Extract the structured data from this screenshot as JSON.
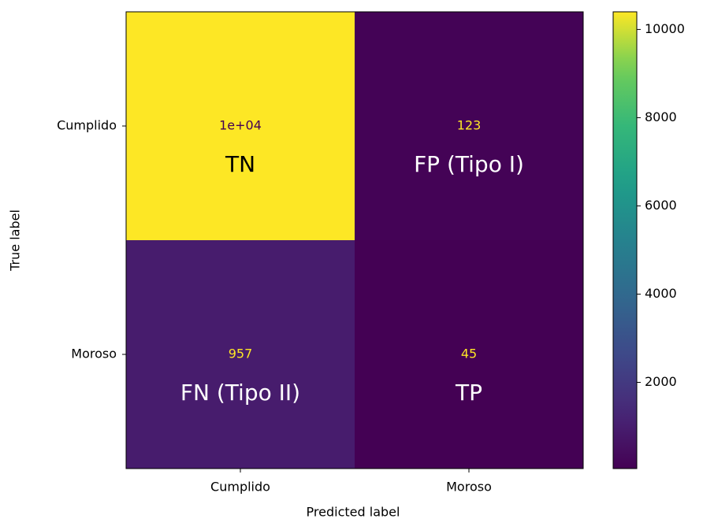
{
  "chart_data": {
    "type": "heatmap",
    "x_categories": [
      "Cumplido",
      "Moroso"
    ],
    "y_categories": [
      "Cumplido",
      "Moroso"
    ],
    "values": [
      [
        10400,
        123
      ],
      [
        957,
        45
      ]
    ],
    "value_labels": [
      [
        "1e+04",
        "123"
      ],
      [
        "957",
        "45"
      ]
    ],
    "cell_labels": [
      [
        "TN",
        "FP (Tipo I)"
      ],
      [
        "FN (Tipo II)",
        "TP"
      ]
    ],
    "xlabel": "Predicted label",
    "ylabel": "True label",
    "colormap": "viridis",
    "zlim": [
      45,
      10400
    ],
    "zticks": [
      2000,
      4000,
      6000,
      8000,
      10000
    ]
  }
}
